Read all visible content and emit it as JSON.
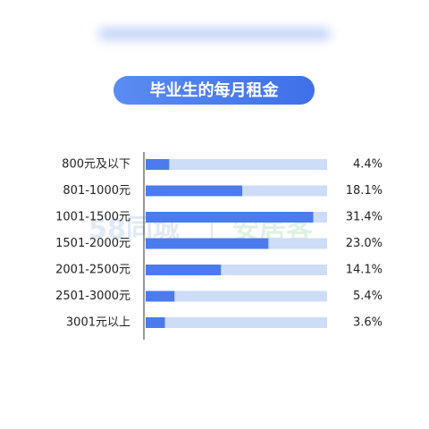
{
  "chart_data": {
    "type": "hbar",
    "title": "毕业生的每月租金",
    "categories": [
      "800元及以下",
      "801-1000元",
      "1001-1500元",
      "1501-2000元",
      "2001-2500元",
      "2501-3000元",
      "3001元以上"
    ],
    "values": [
      4.4,
      18.1,
      31.4,
      23.0,
      14.1,
      5.4,
      3.6
    ],
    "value_labels": [
      "4.4%",
      "18.1%",
      "31.4%",
      "23.0%",
      "14.1%",
      "5.4%",
      "3.6%"
    ],
    "color": "#4b7bec",
    "track_color": "#cddcf7",
    "xlim": [
      0,
      34
    ],
    "watermark": [
      "58同城",
      "安居客"
    ]
  }
}
